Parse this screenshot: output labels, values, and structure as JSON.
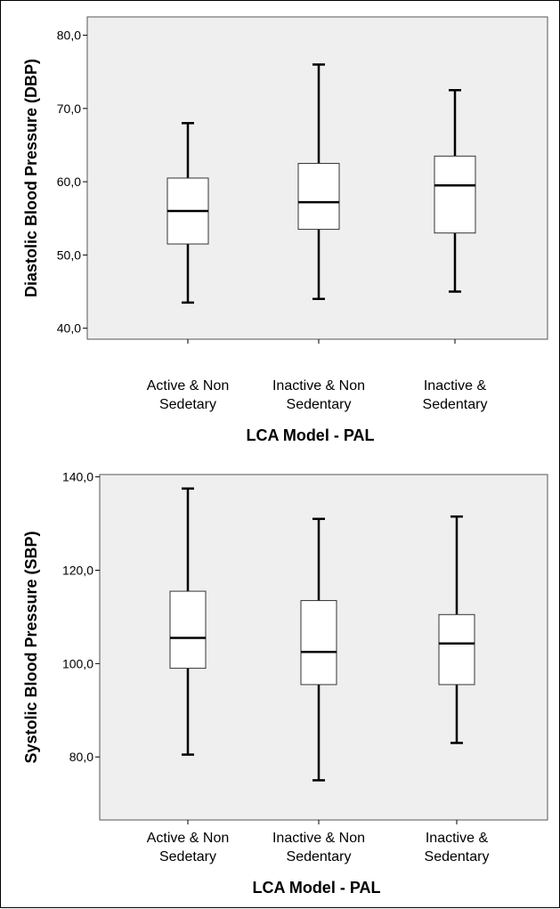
{
  "chart_data": [
    {
      "type": "boxplot",
      "xlabel": "LCA Model - PAL",
      "ylabel": "Diastolic Blood Pressure (DBP)",
      "categories": [
        [
          "Active & Non",
          "Sedetary"
        ],
        [
          "Inactive & Non",
          "Sedentary"
        ],
        [
          "Inactive &",
          "Sedentary"
        ]
      ],
      "yticks": [
        "40,0",
        "50,0",
        "60,0",
        "70,0",
        "80,0"
      ],
      "ytick_values": [
        40,
        50,
        60,
        70,
        80
      ],
      "ylim": [
        38.5,
        82.5
      ],
      "boxes": [
        {
          "min": 43.5,
          "q1": 51.5,
          "median": 56.0,
          "q3": 60.5,
          "max": 68.0
        },
        {
          "min": 44.0,
          "q1": 53.5,
          "median": 57.2,
          "q3": 62.5,
          "max": 76.0
        },
        {
          "min": 45.0,
          "q1": 53.0,
          "median": 59.5,
          "q3": 63.5,
          "max": 72.5
        }
      ],
      "grid": false,
      "colors": {
        "plot_bg": "#efefef",
        "box_fill": "#ffffff",
        "line": "#000000"
      }
    },
    {
      "type": "boxplot",
      "xlabel": "LCA Model - PAL",
      "ylabel": "Systolic Blood Pressure (SBP)",
      "categories": [
        [
          "Active & Non",
          "Sedetary"
        ],
        [
          "Inactive & Non",
          "Sedentary"
        ],
        [
          "Inactive &",
          "Sedentary"
        ]
      ],
      "yticks": [
        "80,0",
        "100,0",
        "120,0",
        "140,0"
      ],
      "ytick_values": [
        80,
        100,
        120,
        140
      ],
      "ylim": [
        66.5,
        140.5
      ],
      "boxes": [
        {
          "min": 80.5,
          "q1": 99.0,
          "median": 105.5,
          "q3": 115.5,
          "max": 137.5
        },
        {
          "min": 75.0,
          "q1": 95.5,
          "median": 102.5,
          "q3": 113.5,
          "max": 131.0
        },
        {
          "min": 83.0,
          "q1": 95.5,
          "median": 104.3,
          "q3": 110.5,
          "max": 131.5
        }
      ],
      "grid": false,
      "colors": {
        "plot_bg": "#efefef",
        "box_fill": "#ffffff",
        "line": "#000000"
      }
    }
  ]
}
